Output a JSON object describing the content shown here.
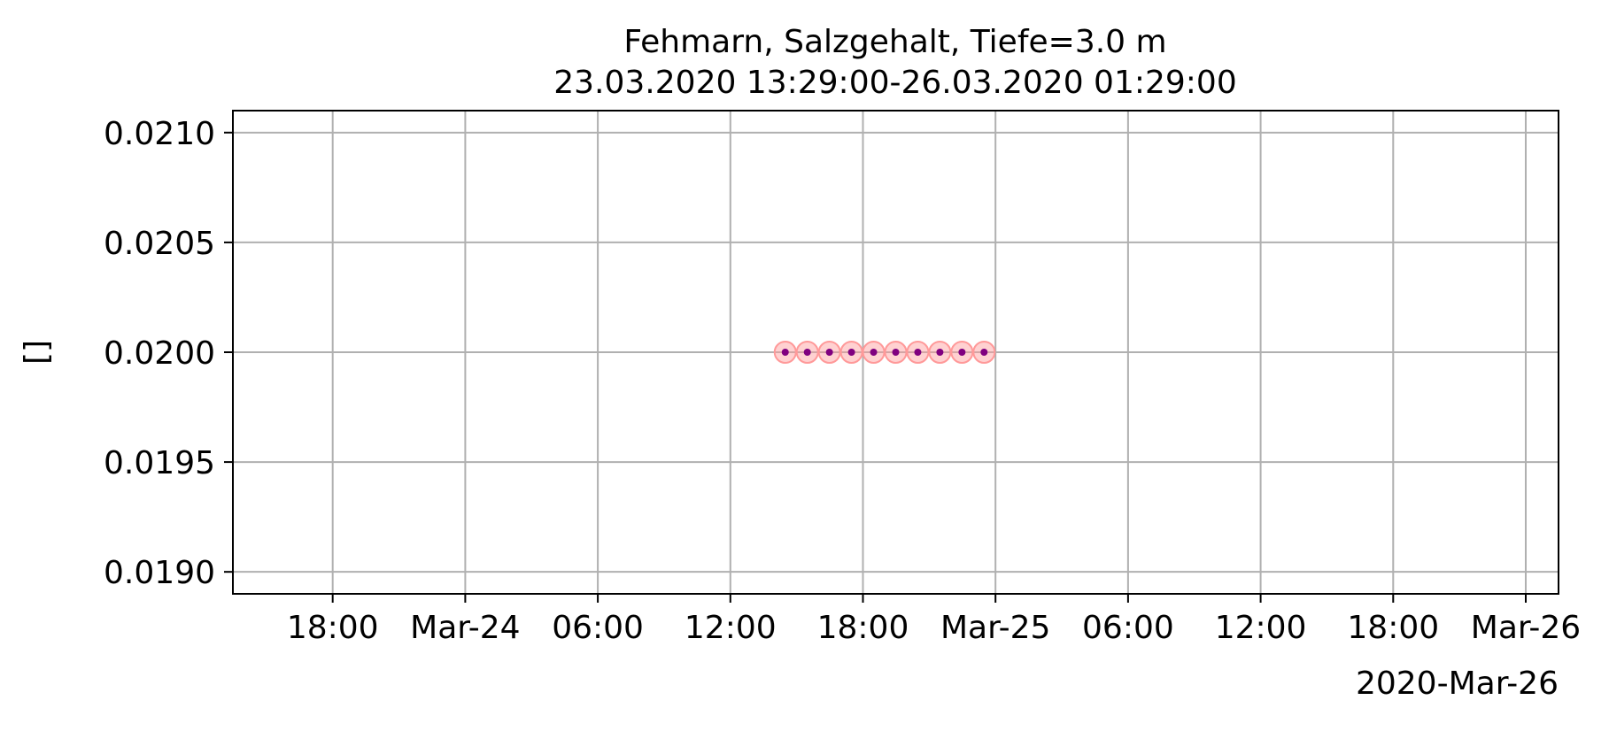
{
  "chart_data": {
    "type": "scatter",
    "title": "Fehmarn, Salzgehalt, Tiefe=3.0 m",
    "subtitle": "23.03.2020 13:29:00-26.03.2020 01:29:00",
    "xlabel": "",
    "ylabel": "[]",
    "x_offset_label": "2020-Mar-26",
    "xlim": [
      "2020-03-23 13:29:00",
      "2020-03-26 01:29:00"
    ],
    "ylim": [
      0.0189,
      0.0211
    ],
    "x_ticks": [
      {
        "t": "2020-03-23 18:00",
        "label": "18:00"
      },
      {
        "t": "2020-03-24 00:00",
        "label": "Mar-24"
      },
      {
        "t": "2020-03-24 06:00",
        "label": "06:00"
      },
      {
        "t": "2020-03-24 12:00",
        "label": "12:00"
      },
      {
        "t": "2020-03-24 18:00",
        "label": "18:00"
      },
      {
        "t": "2020-03-25 00:00",
        "label": "Mar-25"
      },
      {
        "t": "2020-03-25 06:00",
        "label": "06:00"
      },
      {
        "t": "2020-03-25 12:00",
        "label": "12:00"
      },
      {
        "t": "2020-03-25 18:00",
        "label": "18:00"
      },
      {
        "t": "2020-03-26 00:00",
        "label": "Mar-26"
      }
    ],
    "y_ticks": [
      {
        "v": 0.019,
        "label": "0.0190"
      },
      {
        "v": 0.0195,
        "label": "0.0195"
      },
      {
        "v": 0.02,
        "label": "0.0200"
      },
      {
        "v": 0.0205,
        "label": "0.0205"
      },
      {
        "v": 0.021,
        "label": "0.0210"
      }
    ],
    "grid": true,
    "series": [
      {
        "x": [
          "2020-03-24 14:29",
          "2020-03-24 15:29",
          "2020-03-24 16:29",
          "2020-03-24 17:29",
          "2020-03-24 18:29",
          "2020-03-24 19:29",
          "2020-03-24 20:29",
          "2020-03-24 21:29",
          "2020-03-24 22:29",
          "2020-03-24 23:29"
        ],
        "y": [
          0.02,
          0.02,
          0.02,
          0.02,
          0.02,
          0.02,
          0.02,
          0.02,
          0.02,
          0.02
        ],
        "marker_color": "#800080",
        "halo_color": "#ff9999"
      }
    ]
  }
}
